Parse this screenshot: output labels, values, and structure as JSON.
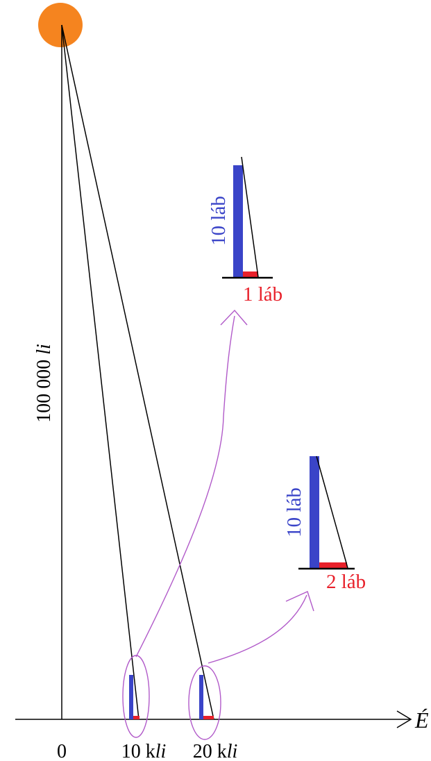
{
  "diagram": {
    "axis_label": "É",
    "height_label": {
      "number": "100 000 ",
      "unit": "li"
    },
    "tick_labels": {
      "origin": "0",
      "first": {
        "number": "10 k",
        "unit": "li"
      },
      "second": {
        "number": "20 k",
        "unit": "li"
      }
    },
    "inset_1": {
      "height_label": "10 láb",
      "shadow_label": "1 láb"
    },
    "inset_2": {
      "height_label": "10 láb",
      "shadow_label": "2 láb"
    },
    "colors": {
      "sun": "#f5841f",
      "gnomon": "#3a44c8",
      "shadow": "#e8202a",
      "highlight": "#b15ac9",
      "line": "#000000"
    }
  }
}
